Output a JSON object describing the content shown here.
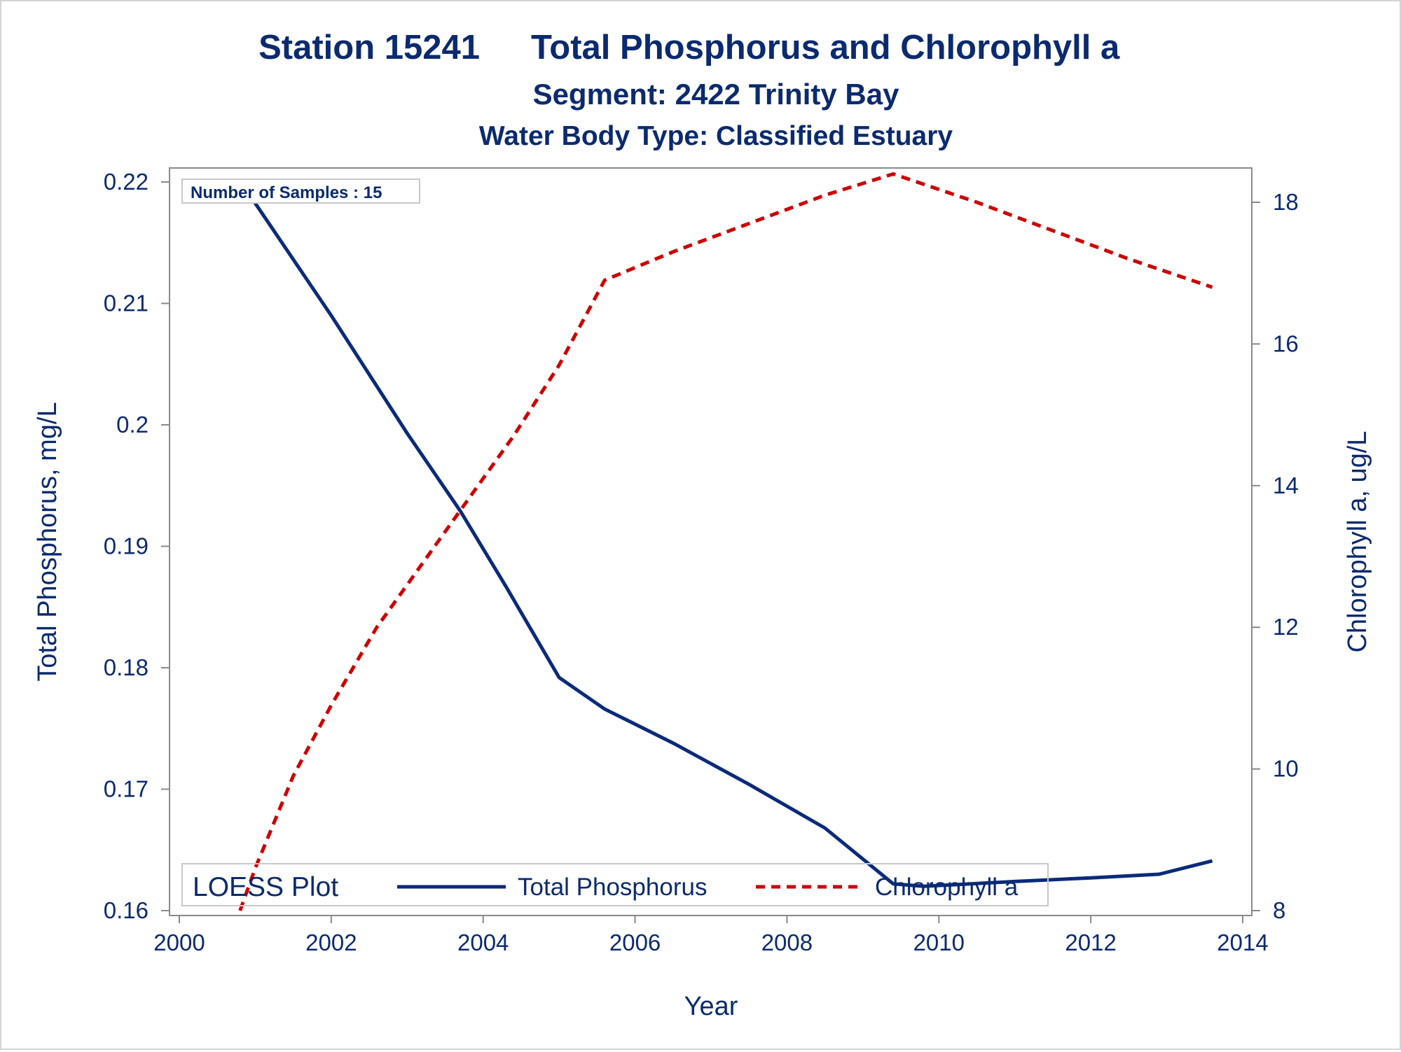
{
  "colors": {
    "text": "#0b2a6f",
    "axis": "#8a8a8a",
    "phosphorus": "#0b2a7a",
    "chlorophyll": "#cc0000",
    "background": "#ffffff"
  },
  "titles": {
    "line1_station": "Station 15241",
    "line1_rest": "Total Phosphorus and Chlorophyll a",
    "line2": "Segment: 2422  Trinity Bay",
    "line3": "Water Body Type: Classified Estuary"
  },
  "inset": {
    "text": "Number of Samples : 15"
  },
  "legend": {
    "title": "LOESS Plot",
    "items": [
      "Total Phosphorus",
      "Chlorophyll a"
    ]
  },
  "chart_data": {
    "type": "line",
    "xlabel": "Year",
    "ylabel_left": "Total Phosphorus, mg/L",
    "ylabel_right": "Chlorophyll a, ug/L",
    "xlim": [
      2000,
      2014
    ],
    "ylim_left": [
      0.16,
      0.22
    ],
    "ylim_right": [
      8,
      18
    ],
    "x_ticks": [
      "2000",
      "2002",
      "2004",
      "2006",
      "2008",
      "2010",
      "2012",
      "2014"
    ],
    "y_left_ticks": [
      "0.16",
      "0.17",
      "0.18",
      "0.19",
      "0.2",
      "0.21",
      "0.22"
    ],
    "y_right_ticks": [
      "8",
      "10",
      "12",
      "14",
      "16",
      "18"
    ],
    "grid": false,
    "legend_position": "bottom-inside",
    "series": [
      {
        "name": "Total Phosphorus",
        "axis": "left",
        "style": "solid",
        "x": [
          2000.8,
          2002.0,
          2003.0,
          2003.7,
          2004.3,
          2005.0,
          2005.6,
          2006.5,
          2007.5,
          2008.5,
          2009.4,
          2009.8,
          2011.0,
          2012.0,
          2012.9,
          2013.6
        ],
        "y": [
          0.2201,
          0.209,
          0.1993,
          0.1929,
          0.1867,
          0.1792,
          0.1766,
          0.1738,
          0.1704,
          0.1668,
          0.1622,
          0.162,
          0.1624,
          0.1627,
          0.163,
          0.1641
        ]
      },
      {
        "name": "Chlorophyll a",
        "axis": "right",
        "style": "dashed",
        "x": [
          2000.8,
          2001.0,
          2001.5,
          2002.0,
          2002.6,
          2003.2,
          2003.8,
          2004.4,
          2005.0,
          2005.6,
          2006.5,
          2007.5,
          2008.5,
          2009.4,
          2010.5,
          2011.5,
          2012.5,
          2013.6
        ],
        "y": [
          8.0,
          8.6,
          9.9,
          10.9,
          12.0,
          12.9,
          13.8,
          14.7,
          15.7,
          16.9,
          17.3,
          17.7,
          18.1,
          18.4,
          18.0,
          17.6,
          17.2,
          16.8
        ]
      }
    ]
  }
}
